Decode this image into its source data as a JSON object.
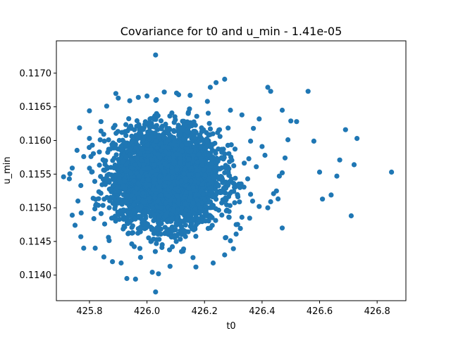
{
  "chart_data": {
    "type": "scatter",
    "title": "Covariance for t0 and u_min - 1.41e-05",
    "xlabel": "t0",
    "ylabel": "u_min",
    "xlim": [
      425.685,
      426.9
    ],
    "ylim": [
      0.11362,
      0.11748
    ],
    "xticks": [
      425.8,
      426.0,
      426.2,
      426.4,
      426.6,
      426.8
    ],
    "xtick_labels": [
      "425.8",
      "426.0",
      "426.2",
      "426.4",
      "426.6",
      "426.8"
    ],
    "yticks": [
      0.114,
      0.1145,
      0.115,
      0.1155,
      0.116,
      0.1165,
      0.117
    ],
    "ytick_labels": [
      "0.1140",
      "0.1145",
      "0.1150",
      "0.1155",
      "0.1160",
      "0.1165",
      "0.1170"
    ],
    "grid": false,
    "marker_color": "#1f77b4",
    "core_cluster": {
      "x_center": 426.07,
      "y_center": 0.11545,
      "x_std": 0.09,
      "y_std": 0.00035,
      "count": 4000
    },
    "points": [
      [
        426.03,
        0.11727
      ],
      [
        426.85,
        0.11553
      ],
      [
        426.72,
        0.11564
      ],
      [
        426.73,
        0.11603
      ],
      [
        426.69,
        0.11616
      ],
      [
        426.67,
        0.11571
      ],
      [
        426.66,
        0.11547
      ],
      [
        426.71,
        0.11488
      ],
      [
        426.64,
        0.11519
      ],
      [
        426.61,
        0.11513
      ],
      [
        426.6,
        0.11553
      ],
      [
        426.58,
        0.11599
      ],
      [
        426.56,
        0.11673
      ],
      [
        426.52,
        0.11628
      ],
      [
        426.5,
        0.11629
      ],
      [
        426.49,
        0.11601
      ],
      [
        426.48,
        0.11574
      ],
      [
        426.47,
        0.11552
      ],
      [
        426.46,
        0.11547
      ],
      [
        426.45,
        0.11525
      ],
      [
        426.44,
        0.11521
      ],
      [
        426.43,
        0.11509
      ],
      [
        426.42,
        0.115
      ],
      [
        426.47,
        0.1147
      ],
      [
        426.42,
        0.11679
      ],
      [
        426.43,
        0.11673
      ],
      [
        426.47,
        0.11645
      ],
      [
        426.39,
        0.11632
      ],
      [
        426.37,
        0.11618
      ],
      [
        426.36,
        0.11599
      ],
      [
        426.4,
        0.11591
      ],
      [
        426.41,
        0.11578
      ],
      [
        426.38,
        0.11561
      ],
      [
        426.35,
        0.11543
      ],
      [
        426.36,
        0.1152
      ],
      [
        426.39,
        0.11502
      ],
      [
        426.33,
        0.11486
      ],
      [
        426.31,
        0.11475
      ],
      [
        426.31,
        0.11461
      ],
      [
        426.29,
        0.11451
      ],
      [
        426.27,
        0.11691
      ],
      [
        426.24,
        0.11686
      ],
      [
        426.22,
        0.11679
      ],
      [
        426.21,
        0.11658
      ],
      [
        426.29,
        0.11645
      ],
      [
        426.33,
        0.11638
      ],
      [
        426.27,
        0.1143
      ],
      [
        426.23,
        0.11418
      ],
      [
        426.17,
        0.11412
      ],
      [
        426.16,
        0.11426
      ],
      [
        426.12,
        0.11435
      ],
      [
        426.08,
        0.11413
      ],
      [
        426.04,
        0.11402
      ],
      [
        426.03,
        0.11375
      ],
      [
        425.96,
        0.11394
      ],
      [
        425.93,
        0.11395
      ],
      [
        425.91,
        0.11418
      ],
      [
        425.88,
        0.1142
      ],
      [
        425.85,
        0.11427
      ],
      [
        425.82,
        0.1144
      ],
      [
        425.78,
        0.1144
      ],
      [
        425.77,
        0.11457
      ],
      [
        425.75,
        0.11474
      ],
      [
        425.74,
        0.11489
      ],
      [
        425.76,
        0.1151
      ],
      [
        425.77,
        0.11533
      ],
      [
        425.73,
        0.11543
      ],
      [
        425.71,
        0.11546
      ],
      [
        425.74,
        0.11559
      ],
      [
        425.78,
        0.11576
      ],
      [
        425.81,
        0.11593
      ],
      [
        425.8,
        0.11603
      ],
      [
        425.84,
        0.11614
      ],
      [
        425.84,
        0.11628
      ],
      [
        425.8,
        0.11644
      ],
      [
        425.86,
        0.11651
      ],
      [
        425.9,
        0.11663
      ],
      [
        425.94,
        0.11659
      ],
      [
        425.97,
        0.11664
      ],
      [
        426.0,
        0.11666
      ],
      [
        426.06,
        0.11672
      ],
      [
        426.11,
        0.11668
      ],
      [
        426.15,
        0.11667
      ]
    ]
  }
}
